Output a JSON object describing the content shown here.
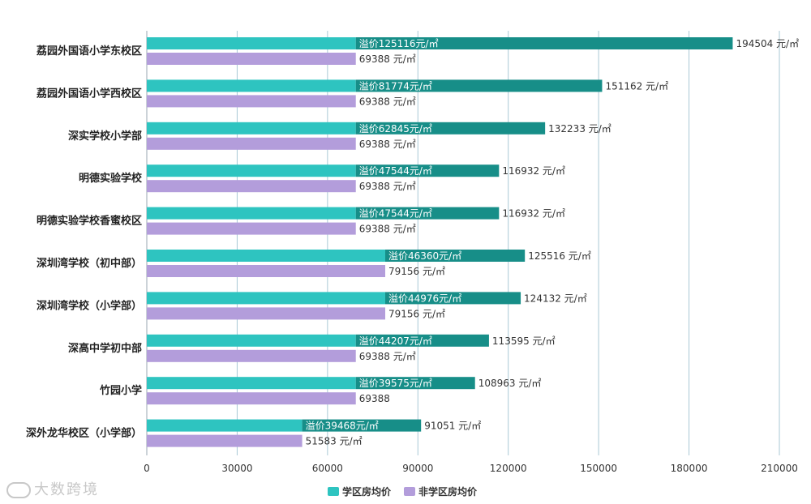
{
  "chart_data": {
    "type": "bar",
    "orientation": "horizontal",
    "categories": [
      "荔园外国语小学东校区",
      "荔园外国语小学西校区",
      "深实学校小学部",
      "明德实验学校",
      "明德实验学校香蜜校区",
      "深圳湾学校（初中部）",
      "深圳湾学校（小学部）",
      "深高中学初中部",
      "竹园小学",
      "深外龙华校区（小学部）"
    ],
    "series": [
      {
        "name": "学区房均价",
        "values": [
          194504,
          151162,
          132233,
          116932,
          116932,
          125516,
          124132,
          113595,
          108963,
          91051
        ],
        "labels": [
          "194504 元/㎡",
          "151162 元/㎡",
          "132233 元/㎡",
          "116932 元/㎡",
          "116932 元/㎡",
          "125516 元/㎡",
          "124132 元/㎡",
          "113595 元/㎡",
          "108963 元/㎡",
          "91051 元/㎡"
        ],
        "color": "#2ec4c0",
        "premium_color": "#178e88"
      },
      {
        "name": "非学区房均价",
        "values": [
          69388,
          69388,
          69388,
          69388,
          69388,
          79156,
          79156,
          69388,
          69388,
          51583
        ],
        "labels": [
          "69388 元/㎡",
          "69388 元/㎡",
          "69388 元/㎡",
          "69388 元/㎡",
          "69388 元/㎡",
          "79156 元/㎡",
          "79156 元/㎡",
          "69388 元/㎡",
          "69388",
          "51583 元/㎡"
        ],
        "color": "#b39ddb"
      }
    ],
    "premium": {
      "values": [
        125116,
        81774,
        62845,
        47544,
        47544,
        46360,
        44976,
        44207,
        39575,
        39468
      ],
      "labels": [
        "溢价125116元/㎡",
        "溢价81774元/㎡",
        "溢价62845元/㎡",
        "溢价47544元/㎡",
        "溢价47544元/㎡",
        "溢价46360元/㎡",
        "溢价44976元/㎡",
        "溢价44207元/㎡",
        "溢价39575元/㎡",
        "溢价39468元/㎡"
      ]
    },
    "x_ticks": [
      "0",
      "30000",
      "60000",
      "90000",
      "120000",
      "150000",
      "180000",
      "210000"
    ],
    "xlim": [
      0,
      210000
    ],
    "grid": "vertical",
    "legend_position": "bottom-center"
  },
  "watermark": "大数跨境"
}
